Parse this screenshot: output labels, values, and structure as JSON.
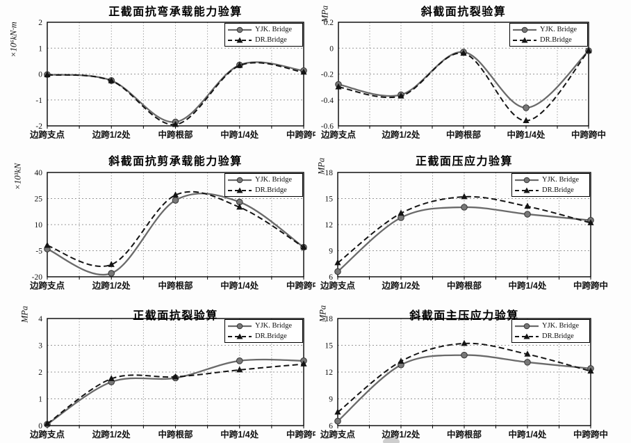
{
  "page": {
    "background": "#fdfdfd"
  },
  "legend": {
    "series": [
      "YJK. Bridge",
      "DR.Bridge"
    ]
  },
  "colors": {
    "yjk_line": "#6a6a6a",
    "yjk_marker_fill": "#787878",
    "yjk_marker_edge": "#333333",
    "dr_line": "#141414",
    "dr_marker_fill": "#141414",
    "grid": "#969696",
    "axis": "#000000",
    "text": "#111111"
  },
  "categories": [
    "边跨支点",
    "边跨1/2处",
    "中跨根部",
    "中跨1/4处",
    "中跨跨中"
  ],
  "chart_data": [
    {
      "type": "line",
      "title": "正截面抗弯承载能力验算",
      "ylabel": "×10⁶kN·m",
      "categories": [
        "边跨支点",
        "边跨1/2处",
        "中跨根部",
        "中跨1/4处",
        "中跨跨中"
      ],
      "ylim": [
        -2,
        2
      ],
      "yticks": [
        2,
        1,
        0,
        -1,
        -2
      ],
      "grid": true,
      "legend_position": "top-right",
      "series": [
        {
          "name": "YJK. Bridge",
          "line": "solid",
          "marker": "circle",
          "color": "#6a6a6a",
          "values": [
            -0.02,
            -0.25,
            -1.85,
            0.35,
            0.13
          ]
        },
        {
          "name": "DR.Bridge",
          "line": "dashed",
          "marker": "triangle",
          "color": "#141414",
          "values": [
            -0.03,
            -0.26,
            -1.95,
            0.33,
            0.07
          ]
        }
      ]
    },
    {
      "type": "line",
      "title": "斜截面抗裂验算",
      "ylabel": "MPa",
      "categories": [
        "边跨支点",
        "边跨1/2处",
        "中跨根部",
        "中跨1/4处",
        "中跨跨中"
      ],
      "ylim": [
        -0.6,
        0.2
      ],
      "yticks": [
        0.2,
        0,
        -0.2,
        -0.4,
        -0.6
      ],
      "grid": true,
      "legend_position": "top-right",
      "series": [
        {
          "name": "YJK. Bridge",
          "line": "solid",
          "marker": "circle",
          "color": "#6a6a6a",
          "values": [
            -0.28,
            -0.36,
            -0.03,
            -0.46,
            -0.02
          ]
        },
        {
          "name": "DR.Bridge",
          "line": "dashed",
          "marker": "triangle",
          "color": "#141414",
          "values": [
            -0.3,
            -0.37,
            -0.04,
            -0.56,
            -0.02
          ]
        }
      ]
    },
    {
      "type": "line",
      "title": "斜截面抗剪承载能力验算",
      "ylabel": "×10³kN",
      "categories": [
        "边跨支点",
        "边跨1/2处",
        "中跨根部",
        "中跨1/4处",
        "中跨跨中"
      ],
      "ylim": [
        -20,
        40
      ],
      "yticks": [
        40,
        25,
        10,
        -5,
        -20
      ],
      "grid": true,
      "legend_position": "top-right",
      "series": [
        {
          "name": "YJK. Bridge",
          "line": "solid",
          "marker": "circle",
          "color": "#6a6a6a",
          "values": [
            -4,
            -18,
            24,
            23,
            -3
          ]
        },
        {
          "name": "DR.Bridge",
          "line": "dashed",
          "marker": "triangle",
          "color": "#141414",
          "values": [
            -2,
            -13,
            27,
            20,
            -3
          ]
        }
      ]
    },
    {
      "type": "line",
      "title": "正截面压应力验算",
      "ylabel": "MPa",
      "categories": [
        "边跨支点",
        "边跨1/2处",
        "中跨根部",
        "中跨1/4处",
        "中跨跨中"
      ],
      "ylim": [
        6,
        18
      ],
      "yticks": [
        18,
        15,
        12,
        9,
        6
      ],
      "grid": true,
      "legend_position": "top-right",
      "series": [
        {
          "name": "YJK. Bridge",
          "line": "solid",
          "marker": "circle",
          "color": "#6a6a6a",
          "values": [
            6.6,
            12.8,
            14.0,
            13.2,
            12.5
          ]
        },
        {
          "name": "DR.Bridge",
          "line": "dashed",
          "marker": "triangle",
          "color": "#141414",
          "values": [
            7.6,
            13.3,
            15.2,
            14.1,
            12.2
          ]
        }
      ]
    },
    {
      "type": "line",
      "title": "正截面抗裂验算",
      "ylabel": "MPa",
      "categories": [
        "边跨支点",
        "边跨1/2处",
        "中跨根部",
        "中跨1/4处",
        "中跨跨中"
      ],
      "ylim": [
        0,
        4
      ],
      "yticks": [
        4,
        3,
        2,
        1,
        0
      ],
      "grid": true,
      "legend_position": "top-right",
      "series": [
        {
          "name": "YJK. Bridge",
          "line": "solid",
          "marker": "circle",
          "color": "#6a6a6a",
          "values": [
            0.05,
            1.63,
            1.78,
            2.42,
            2.42
          ]
        },
        {
          "name": "DR.Bridge",
          "line": "dashed",
          "marker": "triangle",
          "color": "#141414",
          "values": [
            0.07,
            1.75,
            1.82,
            2.08,
            2.3
          ]
        }
      ]
    },
    {
      "type": "line",
      "title": "斜截面主压应力验算",
      "ylabel": "MPa",
      "categories": [
        "边跨支点",
        "边跨1/2处",
        "中跨根部",
        "中跨1/4处",
        "中跨跨中"
      ],
      "ylim": [
        6,
        18
      ],
      "yticks": [
        18,
        15,
        12,
        9,
        6
      ],
      "grid": true,
      "legend_position": "top-right",
      "series": [
        {
          "name": "YJK. Bridge",
          "line": "solid",
          "marker": "circle",
          "color": "#6a6a6a",
          "values": [
            6.5,
            12.8,
            13.9,
            13.1,
            12.4
          ]
        },
        {
          "name": "DR.Bridge",
          "line": "dashed",
          "marker": "triangle",
          "color": "#141414",
          "values": [
            7.5,
            13.2,
            15.2,
            14.0,
            12.1
          ]
        }
      ]
    }
  ]
}
